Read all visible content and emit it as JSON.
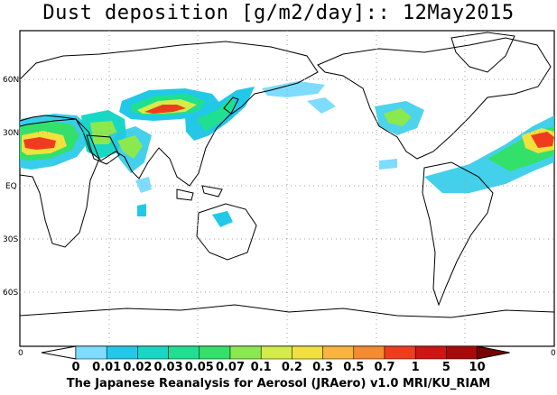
{
  "title": "Dust deposition [g/m2/day]:: 12May2015",
  "latitude_labels": [
    "60N",
    "30N",
    "EQ",
    "30S",
    "60S"
  ],
  "longitude_edge_labels": [
    "0",
    "0"
  ],
  "colorbar": {
    "tick_labels": [
      "0",
      "0.01",
      "0.02",
      "0.03",
      "0.05",
      "0.07",
      "0.1",
      "0.2",
      "0.3",
      "0.5",
      "0.7",
      "1",
      "5",
      "10"
    ],
    "colors": [
      "#ffffff",
      "#7ddcff",
      "#22c8e8",
      "#17d8c4",
      "#1fe090",
      "#33e06a",
      "#8be84e",
      "#d4ec48",
      "#f2e13c",
      "#f8b43c",
      "#f58a2e",
      "#f03c1e",
      "#d01414",
      "#a80a0a",
      "#7a0000"
    ]
  },
  "credit": "The Japanese Reanalysis for Aerosol (JRAero) v1.0 MRI/KU_RIAM"
}
